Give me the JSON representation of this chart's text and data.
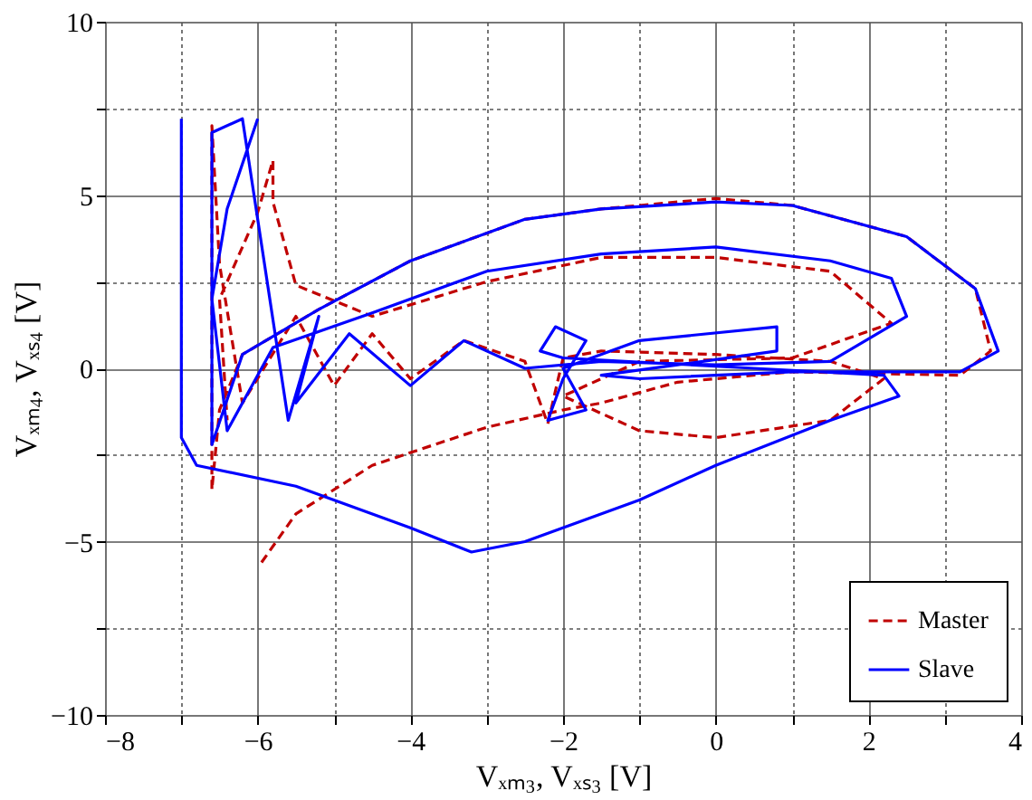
{
  "chart_data": {
    "type": "line",
    "xlabel": "Vₓₘ₃, Vₓₛ₃ [V]",
    "ylabel": "Vₓₘ₄, Vₓₛ₄ [V]",
    "xlim": [
      -8,
      4
    ],
    "ylim": [
      -10,
      10
    ],
    "xticks": [
      -8,
      {
        "value": -7,
        "label": null
      },
      -6,
      {
        "value": -5,
        "label": null
      },
      -4,
      {
        "value": -3,
        "label": null
      },
      -2,
      {
        "value": -1,
        "label": null
      },
      0,
      {
        "value": 1,
        "label": null
      },
      2,
      {
        "value": 3,
        "label": null
      },
      4
    ],
    "yticks": [
      -10,
      {
        "value": -7.5,
        "label": null
      },
      -5,
      {
        "value": -2.5,
        "label": null
      },
      0,
      {
        "value": 2.5,
        "label": null
      },
      5,
      {
        "value": 7.5,
        "label": null
      },
      10
    ],
    "grid": true,
    "legend": "bottom right",
    "marker": "none",
    "series": [
      {
        "name": "Master",
        "color": "#c00000",
        "line_style": "dashed",
        "x": [
          -5.95,
          -5.5,
          -4.5,
          -3,
          -2,
          -1.5,
          -0.5,
          1,
          3.2,
          3.6,
          3.4,
          2.5,
          1,
          0,
          -1.5,
          -2.5,
          -4,
          -5.2,
          -6.2,
          -6.5,
          -6.6,
          -6.6,
          -6.5,
          -6.2,
          -5.5,
          -5,
          -4.5,
          -4,
          -3.3,
          -2.5,
          -2.2,
          -2,
          -1.5,
          0,
          1.5,
          2.2,
          1.5,
          0,
          -1,
          -2,
          -1,
          1,
          2.3,
          1.5,
          0,
          -1.5,
          -3,
          -4.5,
          -5.5,
          -5.8,
          -5.8,
          -6,
          -6.5,
          -6.4
        ],
        "values": [
          -5.6,
          -4.2,
          -2.8,
          -1.7,
          -1.2,
          -1,
          -0.4,
          -0.1,
          -0.2,
          0.5,
          2.3,
          3.8,
          4.7,
          4.9,
          4.6,
          4.3,
          3.1,
          1.7,
          0.4,
          -1.2,
          -3.5,
          7,
          3,
          -1,
          1.5,
          -0.5,
          1,
          -0.3,
          0.8,
          0.2,
          -1.6,
          0.3,
          0.5,
          0.4,
          0.2,
          -0.3,
          -1.5,
          -2,
          -1.8,
          -0.8,
          0.2,
          0.3,
          1.3,
          2.8,
          3.2,
          3.2,
          2.5,
          1.5,
          2.4,
          4.8,
          6,
          4.5,
          2,
          -1.5
        ]
      },
      {
        "name": "Slave",
        "color": "#0000ff",
        "line_style": "solid",
        "x": [
          -7,
          -7,
          -6.8,
          -5.5,
          -4,
          -3.2,
          -2.5,
          -1,
          0,
          1.5,
          2.4,
          2.2,
          0.5,
          -2,
          -2.3,
          -2.1,
          -1.7,
          -2,
          -2.2,
          -1.7,
          -2,
          -1,
          0.8,
          0.8,
          -0.5,
          -1.5,
          -1,
          1,
          3.2,
          3.7,
          3.4,
          2.5,
          1,
          0,
          -1.5,
          -2.5,
          -4,
          -5.2,
          -6.2,
          -6.6,
          -6.6,
          -6.2,
          -5.6,
          -5.2,
          -5.5,
          -4.8,
          -4,
          -3.3,
          -2.5,
          -1.5,
          0,
          1.5,
          2.5,
          2.3,
          1.5,
          0,
          -1.5,
          -3,
          -4.5,
          -5.8,
          -6.4,
          -6.6,
          -6.4,
          -6
        ],
        "values": [
          7.2,
          -2,
          -2.8,
          -3.4,
          -4.6,
          -5.3,
          -5,
          -3.8,
          -2.8,
          -1.5,
          -0.8,
          -0.2,
          0,
          0.3,
          0.5,
          1.2,
          0.8,
          -0.3,
          -1.5,
          -1.2,
          0,
          0.8,
          1.2,
          0.5,
          0.1,
          -0.2,
          -0.3,
          -0.1,
          -0.1,
          0.5,
          2.3,
          3.8,
          4.7,
          4.8,
          4.6,
          4.3,
          3.1,
          1.7,
          0.4,
          -2.2,
          6.8,
          7.2,
          -1.5,
          1.5,
          -1,
          1,
          -0.5,
          0.8,
          0,
          0.2,
          0.1,
          0.2,
          1.5,
          2.6,
          3.1,
          3.5,
          3.3,
          2.8,
          1.6,
          0.6,
          -1.8,
          2,
          4.6,
          7.2
        ]
      }
    ]
  }
}
